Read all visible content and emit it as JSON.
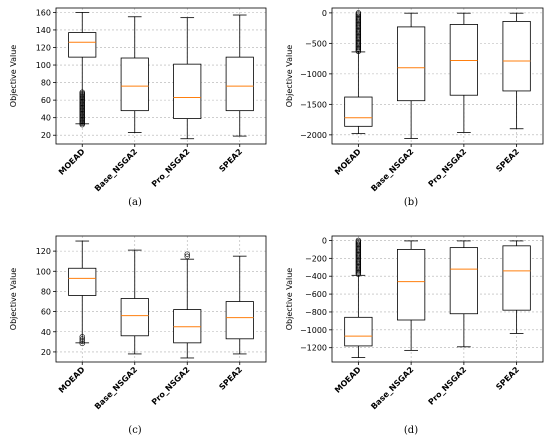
{
  "figure": {
    "panels_caption_order": [
      "(a)",
      "(b)",
      "(c)",
      "(d)"
    ]
  },
  "chart_data": [
    {
      "type": "box",
      "caption": "(a)",
      "ylabel": "Objective Value",
      "categories": [
        "MOEAD",
        "Base_NSGA2",
        "Pro_NSGA2",
        "SPEA2"
      ],
      "ylim": [
        10,
        165
      ],
      "yticks": [
        20,
        40,
        60,
        80,
        100,
        120,
        140,
        160
      ],
      "grid": true,
      "boxes": [
        {
          "whisker_low": 33,
          "q1": 109,
          "median": 126,
          "q3": 137,
          "whisker_high": 160,
          "outliers_range": [
            32,
            69
          ]
        },
        {
          "whisker_low": 23,
          "q1": 48,
          "median": 76,
          "q3": 108,
          "whisker_high": 155,
          "outliers_range": []
        },
        {
          "whisker_low": 16,
          "q1": 39,
          "median": 63,
          "q3": 101,
          "whisker_high": 154,
          "outliers_range": []
        },
        {
          "whisker_low": 19,
          "q1": 48,
          "median": 76,
          "q3": 109,
          "whisker_high": 157,
          "outliers_range": []
        }
      ]
    },
    {
      "type": "box",
      "caption": "(b)",
      "ylabel": "Objective Value",
      "categories": [
        "MOEAD",
        "Base_NSGA2",
        "Pro_NSGA2",
        "SPEA2"
      ],
      "ylim": [
        -2150,
        80
      ],
      "yticks": [
        -2000,
        -1500,
        -1000,
        -500,
        0
      ],
      "grid": true,
      "boxes": [
        {
          "whisker_low": -1980,
          "q1": -1860,
          "median": -1720,
          "q3": -1380,
          "whisker_high": -640,
          "outliers_range": [
            -630,
            0
          ]
        },
        {
          "whisker_low": -2060,
          "q1": -1440,
          "median": -900,
          "q3": -230,
          "whisker_high": -5,
          "outliers_range": []
        },
        {
          "whisker_low": -1960,
          "q1": -1350,
          "median": -780,
          "q3": -190,
          "whisker_high": -5,
          "outliers_range": []
        },
        {
          "whisker_low": -1900,
          "q1": -1280,
          "median": -790,
          "q3": -140,
          "whisker_high": -5,
          "outliers_range": []
        }
      ]
    },
    {
      "type": "box",
      "caption": "(c)",
      "ylabel": "Objective Value",
      "categories": [
        "MOEAD",
        "Base_NSGA2",
        "Pro_NSGA2",
        "SPEA2"
      ],
      "ylim": [
        10,
        135
      ],
      "yticks": [
        20,
        40,
        60,
        80,
        100,
        120
      ],
      "grid": true,
      "boxes": [
        {
          "whisker_low": 29,
          "q1": 76,
          "median": 93,
          "q3": 103,
          "whisker_high": 130,
          "outliers_range": [
            27,
            35
          ]
        },
        {
          "whisker_low": 18,
          "q1": 36,
          "median": 56,
          "q3": 73,
          "whisker_high": 121,
          "outliers_range": []
        },
        {
          "whisker_low": 14,
          "q1": 29,
          "median": 45,
          "q3": 62,
          "whisker_high": 112,
          "outliers_range": [
            113,
            117
          ]
        },
        {
          "whisker_low": 18,
          "q1": 33,
          "median": 54,
          "q3": 70,
          "whisker_high": 115,
          "outliers_range": []
        }
      ]
    },
    {
      "type": "box",
      "caption": "(d)",
      "ylabel": "Objective Value",
      "categories": [
        "MOEAD",
        "Base_NSGA2",
        "Pro_NSGA2",
        "SPEA2"
      ],
      "ylim": [
        -1360,
        50
      ],
      "yticks": [
        -1200,
        -1000,
        -800,
        -600,
        -400,
        -200,
        0
      ],
      "grid": true,
      "boxes": [
        {
          "whisker_low": -1310,
          "q1": -1180,
          "median": -1070,
          "q3": -860,
          "whisker_high": -390,
          "outliers_range": [
            -380,
            0
          ]
        },
        {
          "whisker_low": -1230,
          "q1": -890,
          "median": -460,
          "q3": -100,
          "whisker_high": -5,
          "outliers_range": []
        },
        {
          "whisker_low": -1190,
          "q1": -820,
          "median": -320,
          "q3": -80,
          "whisker_high": -5,
          "outliers_range": []
        },
        {
          "whisker_low": -1040,
          "q1": -780,
          "median": -340,
          "q3": -60,
          "whisker_high": -5,
          "outliers_range": []
        }
      ]
    }
  ]
}
